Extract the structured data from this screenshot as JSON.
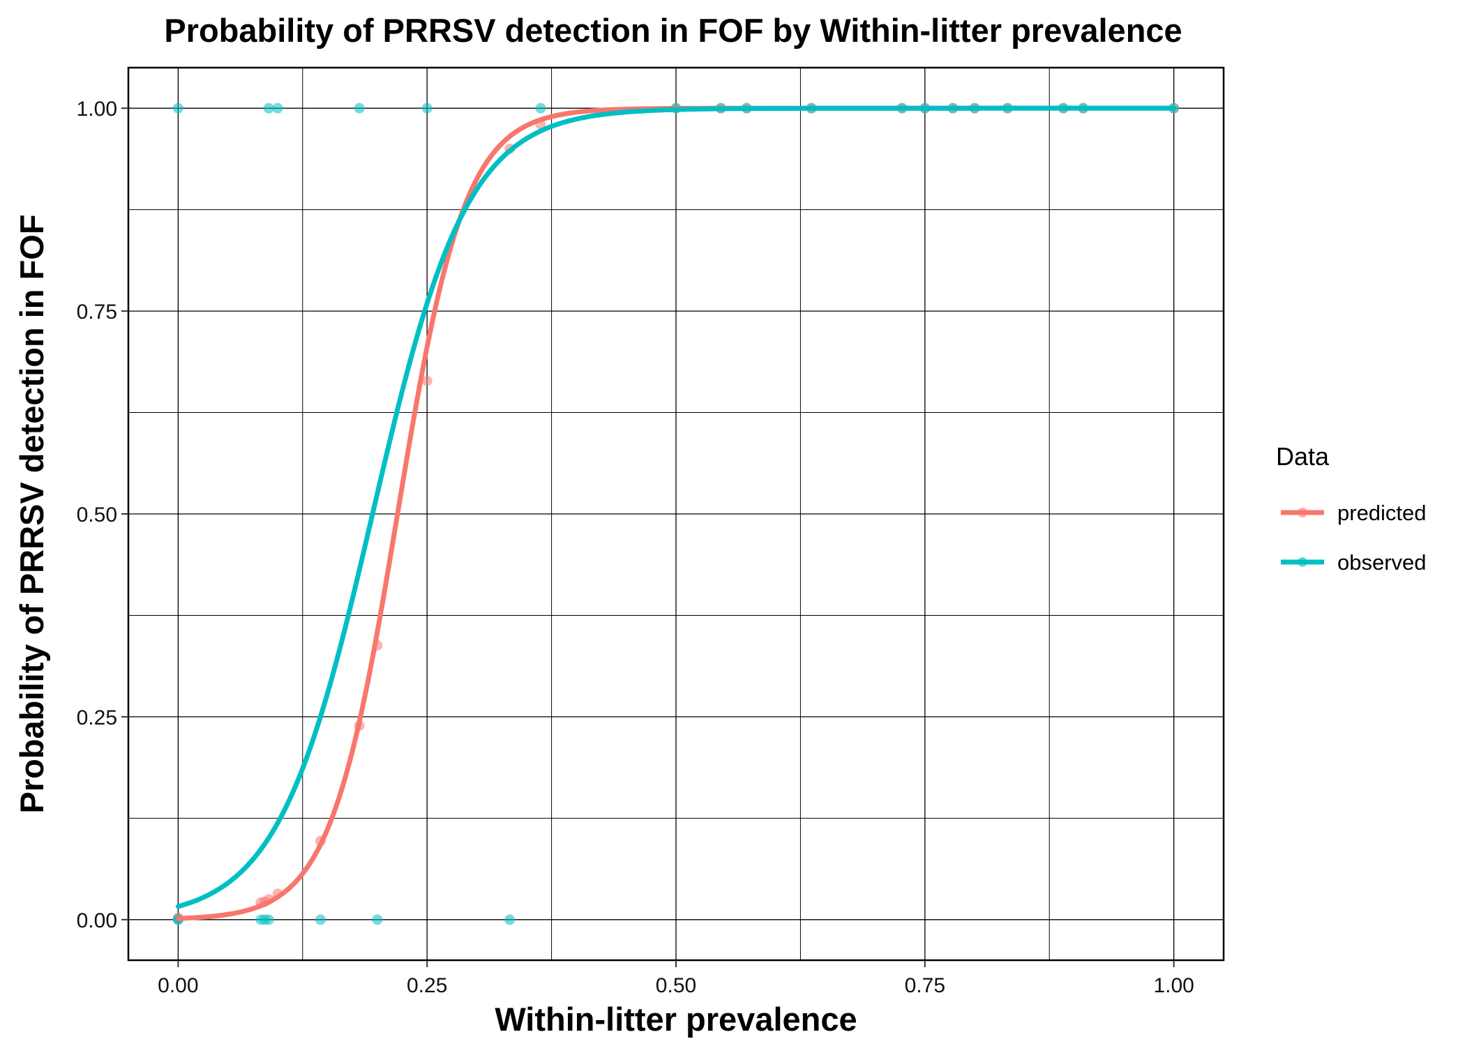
{
  "chart_data": {
    "type": "scatter",
    "title": "Probability of PRRSV detection in FOF by Within-litter prevalence",
    "xlabel": "Within-litter prevalence",
    "ylabel": "Probability of PRRSV detection in FOF",
    "xlim": [
      -0.05,
      1.05
    ],
    "ylim": [
      -0.05,
      1.05
    ],
    "x_ticks": [
      "0.00",
      "0.25",
      "0.50",
      "0.75",
      "1.00"
    ],
    "y_ticks": [
      "0.00",
      "0.25",
      "0.50",
      "0.75",
      "1.00"
    ],
    "grid": true,
    "legend": {
      "title": "Data",
      "position": "right",
      "entries": [
        "predicted",
        "observed"
      ]
    },
    "colors": {
      "predicted": "#F8766D",
      "observed": "#00BFC4"
    },
    "series": [
      {
        "name": "predicted",
        "color": "#F8766D",
        "curve": {
          "type": "logistic",
          "intercept": -6.5,
          "slope": 29.5
        },
        "points": {
          "x": [
            0,
            0,
            0.083,
            0.087,
            0.091,
            0.1,
            0.143,
            0.182,
            0.2,
            0.25,
            0.333,
            0.364,
            0.5,
            0.545,
            0.571,
            0.636,
            0.727,
            0.75,
            0.778,
            0.8,
            0.833,
            0.889,
            0.909,
            1.0
          ],
          "y": [
            0.002,
            0.002,
            0.021,
            0.022,
            0.025,
            0.032,
            0.097,
            0.239,
            0.338,
            0.664,
            0.95,
            0.98,
            1.0,
            1.0,
            1.0,
            1.0,
            1.0,
            1.0,
            1.0,
            1.0,
            1.0,
            1.0,
            1.0,
            1.0
          ]
        }
      },
      {
        "name": "observed",
        "color": "#00BFC4",
        "curve": {
          "type": "logistic",
          "intercept": -4.1,
          "slope": 21.0
        },
        "points": {
          "x": [
            0,
            0,
            0.083,
            0.087,
            0.091,
            0.143,
            0.2,
            0.333,
            0,
            0.091,
            0.1,
            0.182,
            0.25,
            0.364,
            0.5,
            0.545,
            0.571,
            0.636,
            0.727,
            0.75,
            0.778,
            0.8,
            0.833,
            0.889,
            0.909,
            1.0
          ],
          "y": [
            0,
            0,
            0,
            0,
            0,
            0,
            0,
            0,
            1,
            1,
            1,
            1,
            1,
            1,
            1,
            1,
            1,
            1,
            1,
            1,
            1,
            1,
            1,
            1,
            1,
            1
          ]
        }
      }
    ]
  }
}
